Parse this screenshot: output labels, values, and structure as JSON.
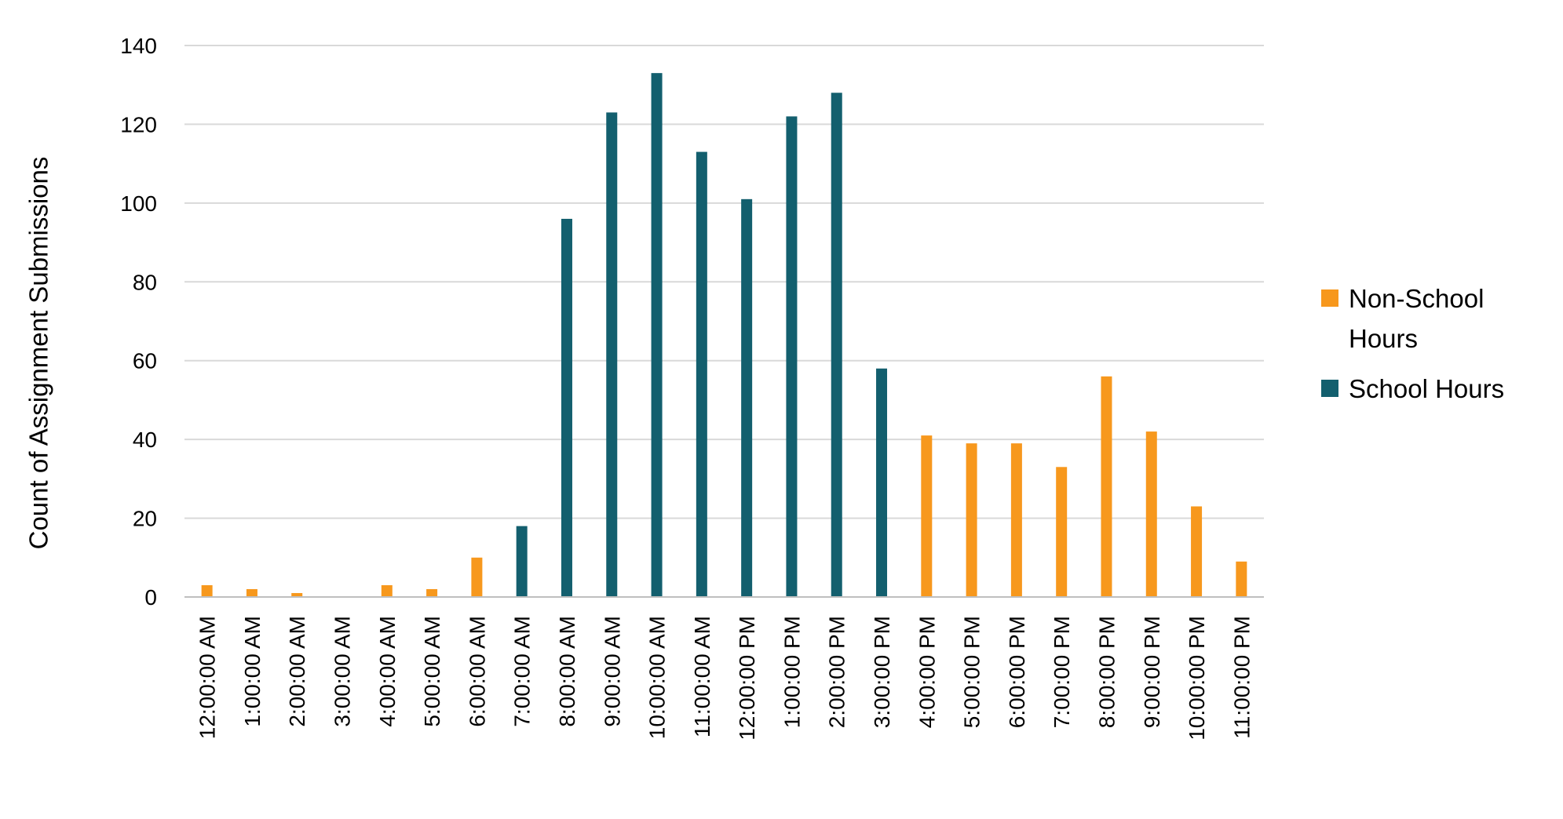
{
  "chart_data": {
    "type": "bar",
    "ylabel": "Count of Assignment Submissions",
    "xlabel": "",
    "ylim": [
      0,
      140
    ],
    "yticks": [
      0,
      20,
      40,
      60,
      80,
      100,
      120,
      140
    ],
    "grid": true,
    "legend_position": "right",
    "categories": [
      "12:00:00 AM",
      "1:00:00 AM",
      "2:00:00 AM",
      "3:00:00 AM",
      "4:00:00 AM",
      "5:00:00 AM",
      "6:00:00 AM",
      "7:00:00 AM",
      "8:00:00 AM",
      "9:00:00 AM",
      "10:00:00 AM",
      "11:00:00 AM",
      "12:00:00 PM",
      "1:00:00 PM",
      "2:00:00 PM",
      "3:00:00 PM",
      "4:00:00 PM",
      "5:00:00 PM",
      "6:00:00 PM",
      "7:00:00 PM",
      "8:00:00 PM",
      "9:00:00 PM",
      "10:00:00 PM",
      "11:00:00 PM"
    ],
    "values": [
      3,
      2,
      1,
      0,
      3,
      2,
      10,
      18,
      96,
      123,
      133,
      113,
      101,
      122,
      128,
      58,
      41,
      39,
      39,
      33,
      56,
      42,
      23,
      9
    ],
    "bar_series": [
      "Non-School Hours",
      "Non-School Hours",
      "Non-School Hours",
      "Non-School Hours",
      "Non-School Hours",
      "Non-School Hours",
      "Non-School Hours",
      "School Hours",
      "School Hours",
      "School Hours",
      "School Hours",
      "School Hours",
      "School Hours",
      "School Hours",
      "School Hours",
      "School Hours",
      "Non-School Hours",
      "Non-School Hours",
      "Non-School Hours",
      "Non-School Hours",
      "Non-School Hours",
      "Non-School Hours",
      "Non-School Hours",
      "Non-School Hours"
    ],
    "series": [
      {
        "name": "Non-School Hours",
        "name_lines": [
          "Non-School",
          "Hours"
        ],
        "color": "#f7981d"
      },
      {
        "name": "School Hours",
        "name_lines": [
          "School Hours"
        ],
        "color": "#135f6e"
      }
    ]
  }
}
